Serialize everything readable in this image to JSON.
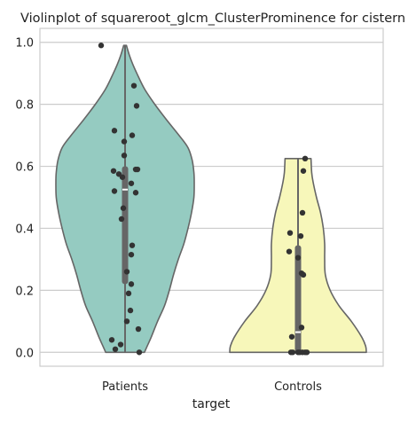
{
  "chart_data": {
    "type": "violin",
    "title": "Violinplot of squareroot_glcm_ClusterProminence for cistern",
    "xlabel": "target",
    "ylabel": "",
    "ylim": [
      -0.045,
      1.045
    ],
    "yticks": [
      0.0,
      0.2,
      0.4,
      0.6,
      0.8,
      1.0
    ],
    "ytick_labels": [
      "0.0",
      "0.2",
      "0.4",
      "0.6",
      "0.8",
      "1.0"
    ],
    "grid": "horizontal",
    "categories": [
      "Patients",
      "Controls"
    ],
    "colors": {
      "Patients": "#95cbc1",
      "Controls": "#f7f7ba",
      "outline": "#666666",
      "points": "#333333",
      "grid": "#cccccc"
    },
    "series": [
      {
        "category": "Patients",
        "violin_profile": [
          {
            "y": 0.0,
            "w": 0.28
          },
          {
            "y": 0.02,
            "w": 0.32
          },
          {
            "y": 0.05,
            "w": 0.38
          },
          {
            "y": 0.1,
            "w": 0.47
          },
          {
            "y": 0.15,
            "w": 0.57
          },
          {
            "y": 0.2,
            "w": 0.64
          },
          {
            "y": 0.25,
            "w": 0.7
          },
          {
            "y": 0.3,
            "w": 0.77
          },
          {
            "y": 0.35,
            "w": 0.85
          },
          {
            "y": 0.4,
            "w": 0.91
          },
          {
            "y": 0.45,
            "w": 0.96
          },
          {
            "y": 0.5,
            "w": 0.995
          },
          {
            "y": 0.55,
            "w": 1.0
          },
          {
            "y": 0.58,
            "w": 0.995
          },
          {
            "y": 0.62,
            "w": 0.97
          },
          {
            "y": 0.66,
            "w": 0.91
          },
          {
            "y": 0.7,
            "w": 0.78
          },
          {
            "y": 0.75,
            "w": 0.6
          },
          {
            "y": 0.8,
            "w": 0.43
          },
          {
            "y": 0.85,
            "w": 0.28
          },
          {
            "y": 0.9,
            "w": 0.17
          },
          {
            "y": 0.93,
            "w": 0.11
          },
          {
            "y": 0.96,
            "w": 0.06
          },
          {
            "y": 0.99,
            "w": 0.02
          }
        ],
        "quartiles": [
          0.22,
          0.6
        ],
        "median": 0.525,
        "points": [
          {
            "y": 0.99,
            "dx": -0.27
          },
          {
            "y": 0.86,
            "dx": 0.1
          },
          {
            "y": 0.795,
            "dx": 0.13
          },
          {
            "y": 0.715,
            "dx": -0.12
          },
          {
            "y": 0.7,
            "dx": 0.08
          },
          {
            "y": 0.68,
            "dx": -0.01
          },
          {
            "y": 0.635,
            "dx": -0.01
          },
          {
            "y": 0.59,
            "dx": 0.12
          },
          {
            "y": 0.59,
            "dx": 0.14
          },
          {
            "y": 0.585,
            "dx": -0.13
          },
          {
            "y": 0.575,
            "dx": -0.07
          },
          {
            "y": 0.565,
            "dx": -0.03
          },
          {
            "y": 0.545,
            "dx": 0.07
          },
          {
            "y": 0.52,
            "dx": -0.12
          },
          {
            "y": 0.515,
            "dx": 0.12
          },
          {
            "y": 0.465,
            "dx": -0.02
          },
          {
            "y": 0.43,
            "dx": -0.04
          },
          {
            "y": 0.345,
            "dx": 0.08
          },
          {
            "y": 0.315,
            "dx": 0.07
          },
          {
            "y": 0.26,
            "dx": 0.02
          },
          {
            "y": 0.22,
            "dx": 0.07
          },
          {
            "y": 0.19,
            "dx": 0.04
          },
          {
            "y": 0.135,
            "dx": 0.06
          },
          {
            "y": 0.1,
            "dx": 0.02
          },
          {
            "y": 0.075,
            "dx": 0.15
          },
          {
            "y": 0.04,
            "dx": -0.15
          },
          {
            "y": 0.025,
            "dx": -0.05
          },
          {
            "y": 0.01,
            "dx": -0.11
          },
          {
            "y": 0.0,
            "dx": 0.16
          }
        ]
      },
      {
        "category": "Controls",
        "violin_profile": [
          {
            "y": 0.0,
            "w": 1.0
          },
          {
            "y": 0.02,
            "w": 0.99
          },
          {
            "y": 0.05,
            "w": 0.93
          },
          {
            "y": 0.1,
            "w": 0.78
          },
          {
            "y": 0.15,
            "w": 0.6
          },
          {
            "y": 0.2,
            "w": 0.47
          },
          {
            "y": 0.25,
            "w": 0.4
          },
          {
            "y": 0.3,
            "w": 0.39
          },
          {
            "y": 0.35,
            "w": 0.39
          },
          {
            "y": 0.4,
            "w": 0.37
          },
          {
            "y": 0.45,
            "w": 0.33
          },
          {
            "y": 0.5,
            "w": 0.27
          },
          {
            "y": 0.55,
            "w": 0.22
          },
          {
            "y": 0.58,
            "w": 0.2
          },
          {
            "y": 0.625,
            "w": 0.19
          }
        ],
        "quartiles": [
          0.0,
          0.345
        ],
        "median": 0.065,
        "points": [
          {
            "y": 0.625,
            "dx": 0.08
          },
          {
            "y": 0.585,
            "dx": 0.06
          },
          {
            "y": 0.45,
            "dx": 0.05
          },
          {
            "y": 0.385,
            "dx": -0.09
          },
          {
            "y": 0.375,
            "dx": 0.03
          },
          {
            "y": 0.325,
            "dx": -0.1
          },
          {
            "y": 0.305,
            "dx": 0.0
          },
          {
            "y": 0.255,
            "dx": 0.04
          },
          {
            "y": 0.25,
            "dx": 0.06
          },
          {
            "y": 0.08,
            "dx": 0.04
          },
          {
            "y": 0.05,
            "dx": -0.07
          },
          {
            "y": 0.0,
            "dx": -0.08
          },
          {
            "y": 0.0,
            "dx": -0.06
          },
          {
            "y": 0.0,
            "dx": 0.0
          },
          {
            "y": 0.0,
            "dx": 0.02
          },
          {
            "y": 0.0,
            "dx": 0.05
          },
          {
            "y": 0.0,
            "dx": 0.08
          },
          {
            "y": 0.0,
            "dx": 0.1
          }
        ]
      }
    ]
  }
}
